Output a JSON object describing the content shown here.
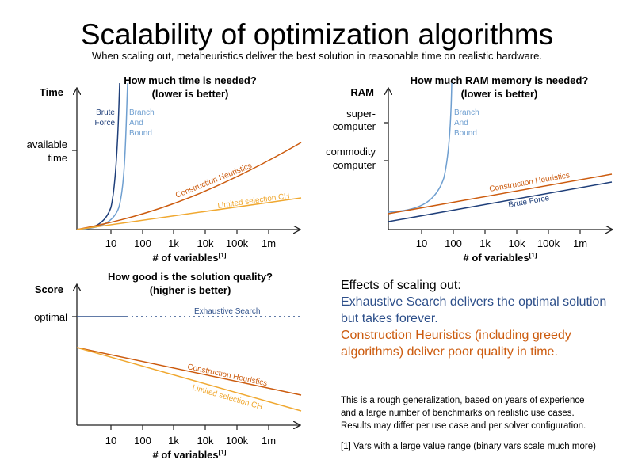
{
  "title": "Scalability of optimization algorithms",
  "subtitle": "When scaling out, metaheuristics deliver the best solution in reasonable time on realistic hardware.",
  "colors": {
    "brute_force": "#1f3f7a",
    "branch_and_bound": "#6f9fd0",
    "construction_heuristics": "#cc5b0e",
    "limited_selection_ch": "#f0a830",
    "exhaustive_search": "#2d4f8a",
    "axis": "#222222"
  },
  "effects": {
    "heading": "Effects of scaling out:",
    "exhaustive_line1": "Exhaustive Search delivers the optimal solution",
    "exhaustive_line2": "but takes forever.",
    "construction_line1": "Construction Heuristics (including greedy",
    "construction_line2": "algorithms) deliver poor quality in time."
  },
  "notes": {
    "line1": "This is a rough generalization, based on years of experience",
    "line2": "and a large number of benchmarks on realistic use cases.",
    "line3": "Results may differ per use case and per solver configuration.",
    "footnote": "[1] Vars with a large value range (binary vars scale much more)"
  },
  "chart_data": [
    {
      "id": "time",
      "type": "line",
      "title_line1": "How much time is needed?",
      "title_line2": "(lower is better)",
      "ylabel": "Time",
      "xlabel": "# of variables",
      "xlabel_sup": "[1]",
      "x_ticks": [
        "10",
        "100",
        "1k",
        "10k",
        "100k",
        "1m"
      ],
      "y_ticks": [
        "available",
        "time"
      ],
      "y_scale": "qualitative",
      "series": [
        {
          "name_lines": [
            "Brute",
            "Force"
          ],
          "color_key": "brute_force",
          "growth": "exponential",
          "x_log10": [
            0,
            0.5,
            0.8,
            1.0,
            1.1,
            1.2
          ],
          "y_relative": [
            0,
            0.02,
            0.08,
            0.25,
            0.55,
            1.5
          ]
        },
        {
          "name_lines": [
            "Branch",
            "And",
            "Bound"
          ],
          "color_key": "branch_and_bound",
          "growth": "exponential",
          "x_log10": [
            0,
            0.6,
            1.0,
            1.2,
            1.35,
            1.45
          ],
          "y_relative": [
            0,
            0.02,
            0.1,
            0.3,
            0.65,
            1.5
          ]
        },
        {
          "name_lines": [
            "Construction Heuristics"
          ],
          "color_key": "construction_heuristics",
          "growth": "polynomial",
          "x_log10": [
            0,
            2,
            4,
            6,
            7
          ],
          "y_relative": [
            0,
            0.12,
            0.32,
            0.6,
            0.78
          ]
        },
        {
          "name_lines": [
            "Limited selection CH"
          ],
          "color_key": "limited_selection_ch",
          "growth": "linear",
          "x_log10": [
            0,
            7
          ],
          "y_relative": [
            0,
            0.34
          ]
        }
      ]
    },
    {
      "id": "ram",
      "type": "line",
      "title_line1": "How much RAM memory is needed?",
      "title_line2": "(lower is better)",
      "ylabel": "RAM",
      "xlabel": "# of variables",
      "xlabel_sup": "[1]",
      "x_ticks": [
        "10",
        "100",
        "1k",
        "10k",
        "100k",
        "1m"
      ],
      "y_ticks": [
        "super-",
        "computer",
        "commodity",
        "computer"
      ],
      "y_scale": "qualitative",
      "series": [
        {
          "name_lines": [
            "Branch",
            "And",
            "Bound"
          ],
          "color_key": "branch_and_bound",
          "growth": "exponential",
          "x_log10": [
            0,
            1,
            1.5,
            1.8,
            2.0
          ],
          "y_relative": [
            0.1,
            0.13,
            0.3,
            0.6,
            1.2
          ]
        },
        {
          "name_lines": [
            "Construction Heuristics"
          ],
          "color_key": "construction_heuristics",
          "growth": "linear",
          "x_log10": [
            0,
            7
          ],
          "y_relative": [
            0.1,
            0.45
          ]
        },
        {
          "name_lines": [
            "Brute Force"
          ],
          "color_key": "brute_force",
          "growth": "linear",
          "x_log10": [
            0,
            7
          ],
          "y_relative": [
            0.05,
            0.38
          ]
        }
      ]
    },
    {
      "id": "score",
      "type": "line",
      "title_line1": "How good is the solution quality?",
      "title_line2": "(higher is better)",
      "ylabel": "Score",
      "xlabel": "# of variables",
      "xlabel_sup": "[1]",
      "x_ticks": [
        "10",
        "100",
        "1k",
        "10k",
        "100k",
        "1m"
      ],
      "y_ticks": [
        "optimal"
      ],
      "y_scale": "qualitative",
      "series": [
        {
          "name_lines": [
            "Exhaustive Search"
          ],
          "color_key": "exhaustive_search",
          "style": "solid then dotted",
          "solid_until_x_log10": 1.5,
          "x_log10": [
            0,
            7
          ],
          "y_relative": [
            1.0,
            1.0
          ]
        },
        {
          "name_lines": [
            "Construction Heuristics"
          ],
          "color_key": "construction_heuristics",
          "style": "solid",
          "x_log10": [
            0,
            7
          ],
          "y_relative": [
            0.7,
            0.2
          ]
        },
        {
          "name_lines": [
            "Limited selection CH"
          ],
          "color_key": "limited_selection_ch",
          "style": "solid",
          "x_log10": [
            0,
            7
          ],
          "y_relative": [
            0.7,
            0.05
          ]
        }
      ]
    }
  ]
}
